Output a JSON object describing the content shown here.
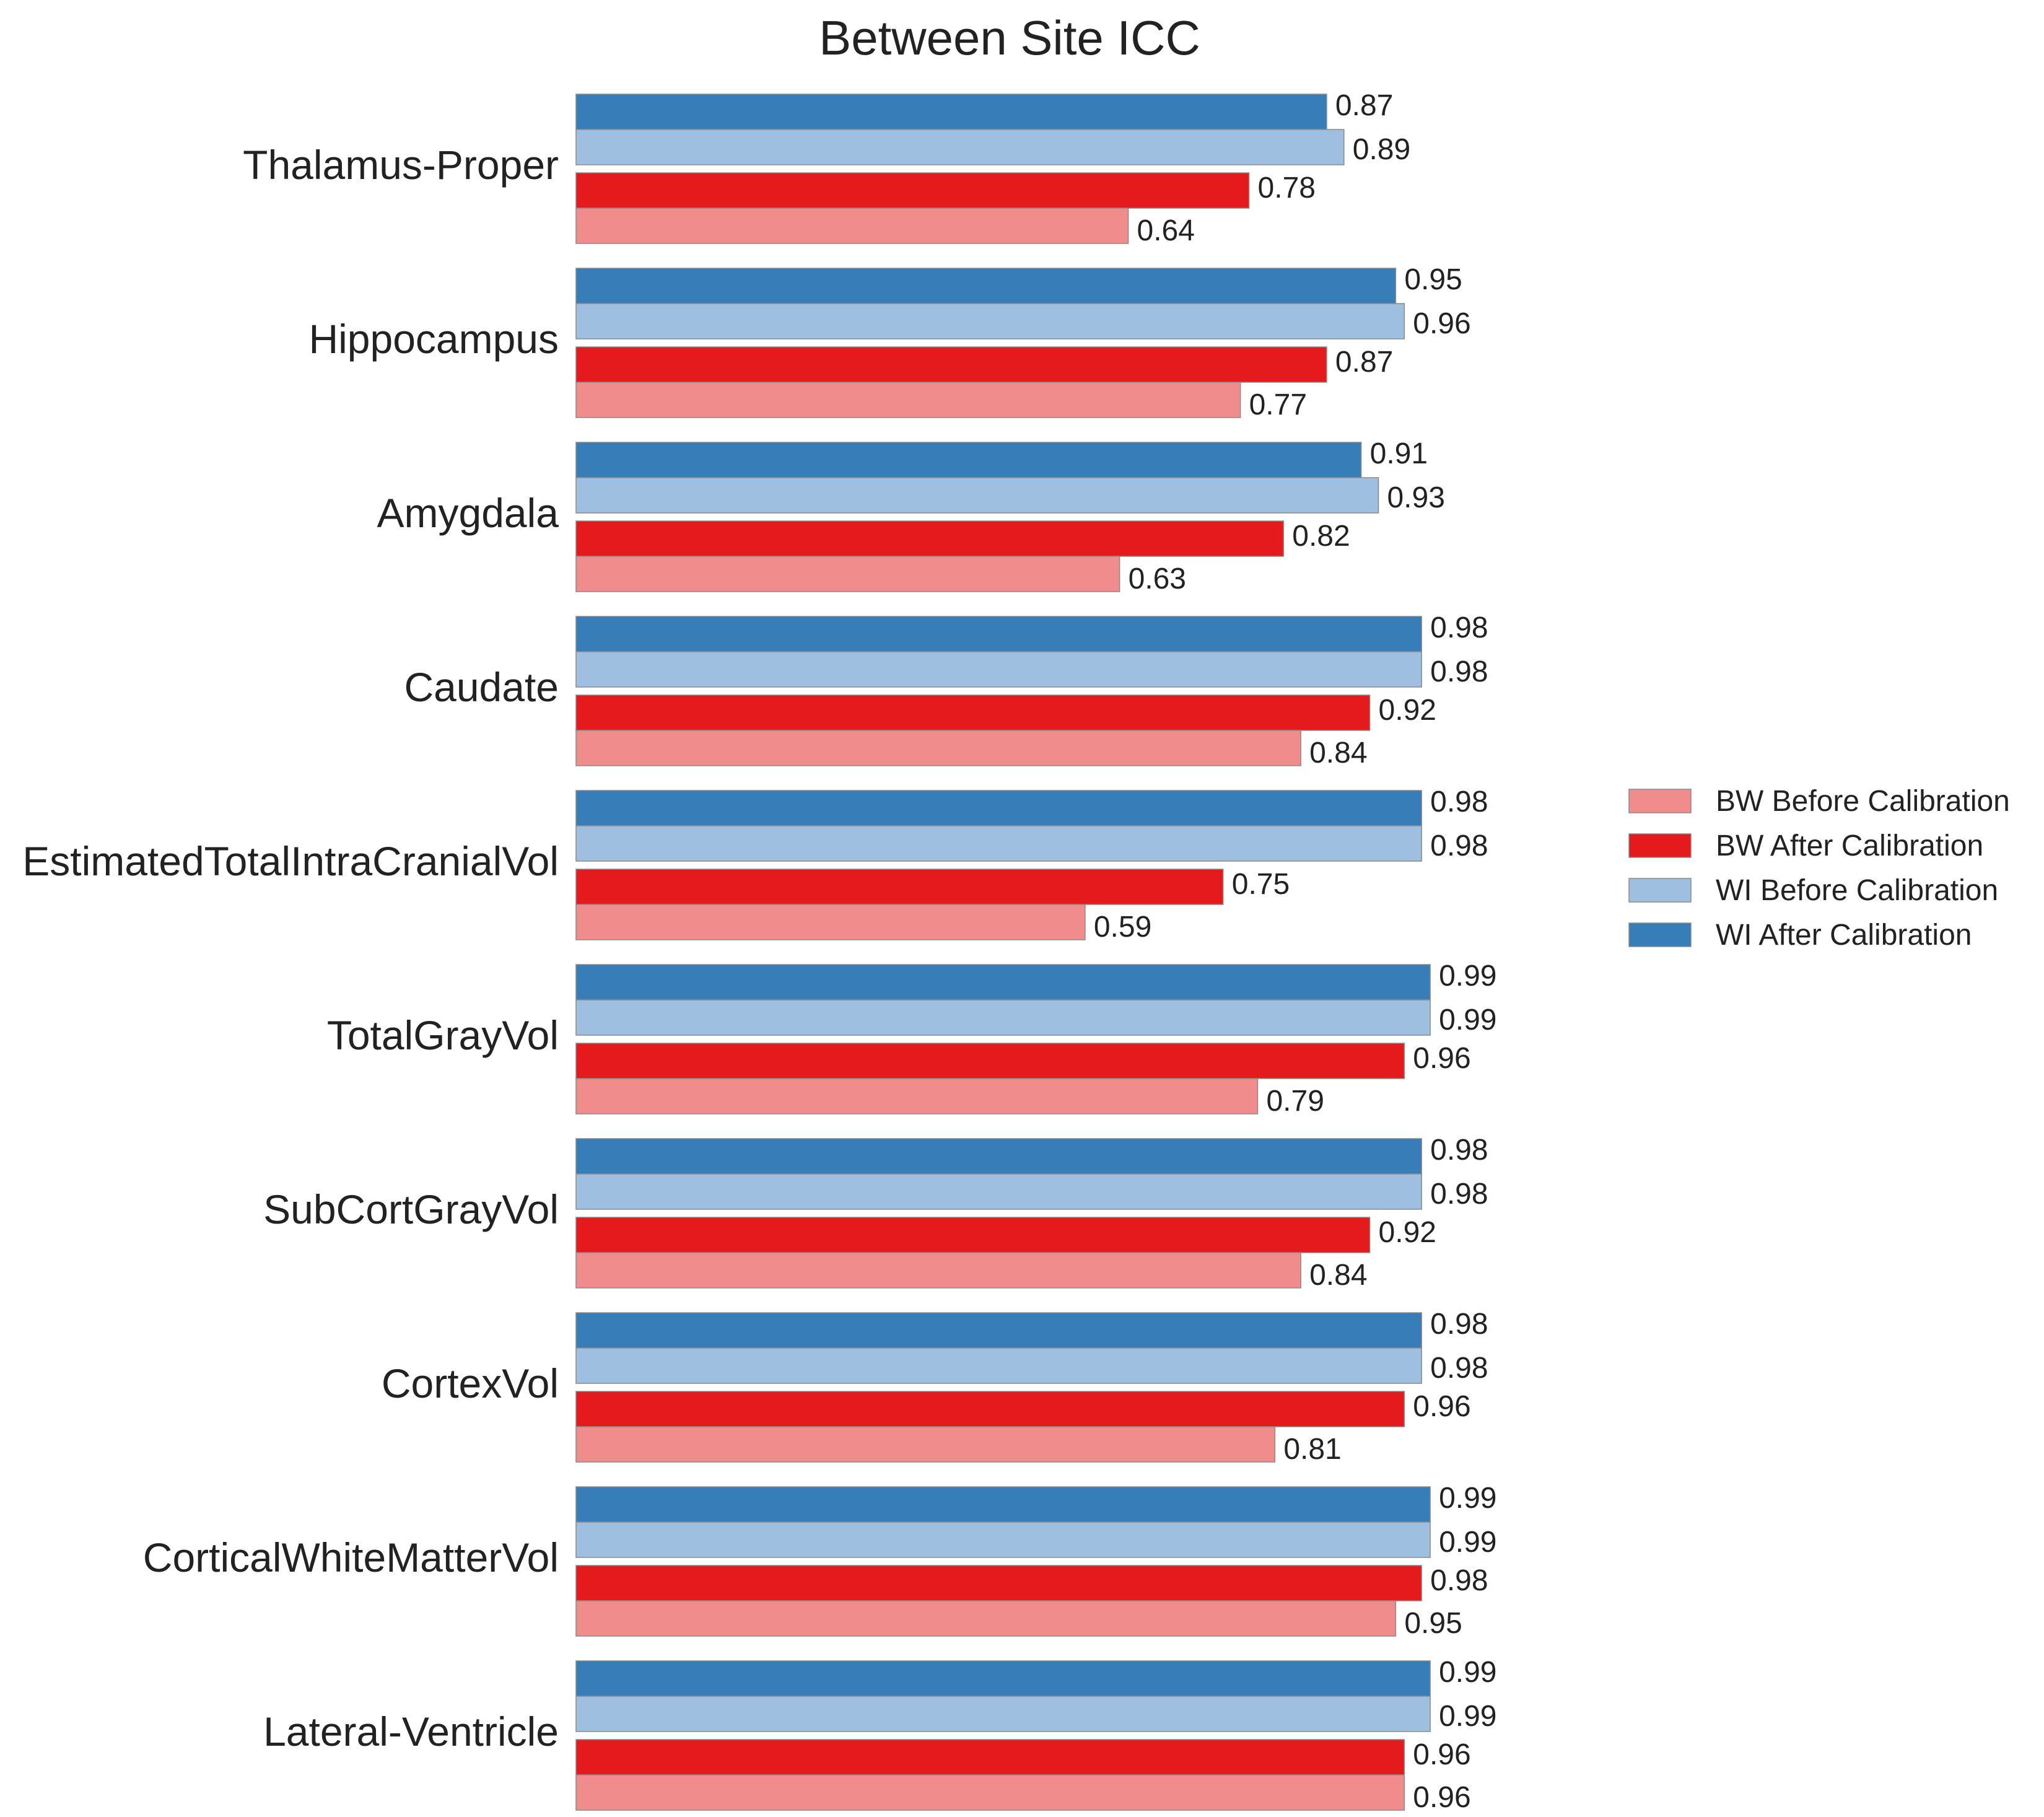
{
  "chart_data": {
    "type": "bar",
    "orientation": "horizontal",
    "title": "Between Site ICC",
    "xlabel": "",
    "ylabel": "",
    "xlim": [
      0,
      1
    ],
    "grid": false,
    "legend_position": "right",
    "categories": [
      "Thalamus-Proper",
      "Hippocampus",
      "Amygdala",
      "Caudate",
      "EstimatedTotalIntraCranialVol",
      "TotalGrayVol",
      "SubCortGrayVol",
      "CortexVol",
      "CorticalWhiteMatterVol",
      "Lateral-Ventricle"
    ],
    "series": [
      {
        "name": "BW Before Calibration",
        "color": "#f08c8c",
        "values": [
          0.64,
          0.77,
          0.63,
          0.84,
          0.59,
          0.79,
          0.84,
          0.81,
          0.95,
          0.96
        ]
      },
      {
        "name": "BW After Calibration",
        "color": "#e41a1c",
        "values": [
          0.78,
          0.87,
          0.82,
          0.92,
          0.75,
          0.96,
          0.92,
          0.96,
          0.98,
          0.96
        ]
      },
      {
        "name": "WI Before Calibration",
        "color": "#9ebfe0",
        "values": [
          0.89,
          0.96,
          0.93,
          0.98,
          0.98,
          0.99,
          0.98,
          0.98,
          0.99,
          0.99
        ]
      },
      {
        "name": "WI After Calibration",
        "color": "#377eb8",
        "values": [
          0.87,
          0.95,
          0.91,
          0.98,
          0.98,
          0.99,
          0.98,
          0.98,
          0.99,
          0.99
        ]
      }
    ],
    "data_labels": [
      [
        "0.64",
        "0.78",
        "0.89",
        "0.87"
      ],
      [
        "0.77",
        "0.87",
        "0.96",
        "0.95"
      ],
      [
        "0.63",
        "0.82",
        "0.93",
        "0.91"
      ],
      [
        "0.84",
        "0.92",
        "0.98",
        "0.98"
      ],
      [
        "0.59",
        "0.75",
        "0.98",
        "0.98"
      ],
      [
        "0.79",
        "0.96",
        "0.99",
        "0.99"
      ],
      [
        "0.84",
        "0.92",
        "0.98",
        "0.98"
      ],
      [
        "0.81",
        "0.96",
        "0.98",
        "0.98"
      ],
      [
        "0.95",
        "0.98",
        "0.99",
        "0.99"
      ],
      [
        "0.96",
        "0.96",
        "0.99",
        "0.99"
      ]
    ]
  }
}
